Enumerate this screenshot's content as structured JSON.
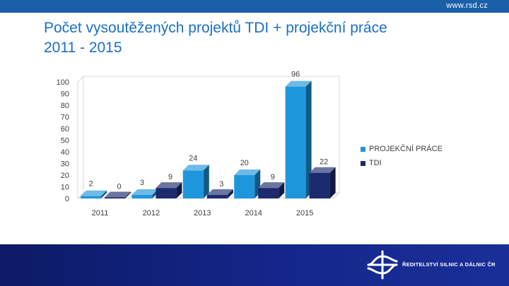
{
  "header": {
    "website": "www.rsd.cz"
  },
  "title": {
    "line1": "Počet vysoutěžených projektů TDI + projekční práce",
    "line2": "2011 - 2015"
  },
  "chart_data": {
    "type": "bar",
    "title": "Počet vysoutěžených projektů TDI + projekční práce 2011 - 2015",
    "categories": [
      "2011",
      "2012",
      "2013",
      "2014",
      "2015"
    ],
    "series": [
      {
        "name": "PROJEKČNÍ PRÁCE",
        "values": [
          2,
          3,
          24,
          20,
          96
        ],
        "color": "#1e96dc"
      },
      {
        "name": "TDI",
        "values": [
          0,
          9,
          3,
          9,
          22
        ],
        "color": "#1c2a6e"
      }
    ],
    "ylim": [
      0,
      100
    ],
    "yticks": [
      0,
      10,
      20,
      30,
      40,
      50,
      60,
      70,
      80,
      90,
      100
    ],
    "xlabel": "",
    "ylabel": "",
    "grid": false,
    "legend": "right"
  },
  "footer": {
    "logo_text": "ŘEDITELSTVÍ SILNIC A DÁLNIC ČR"
  }
}
